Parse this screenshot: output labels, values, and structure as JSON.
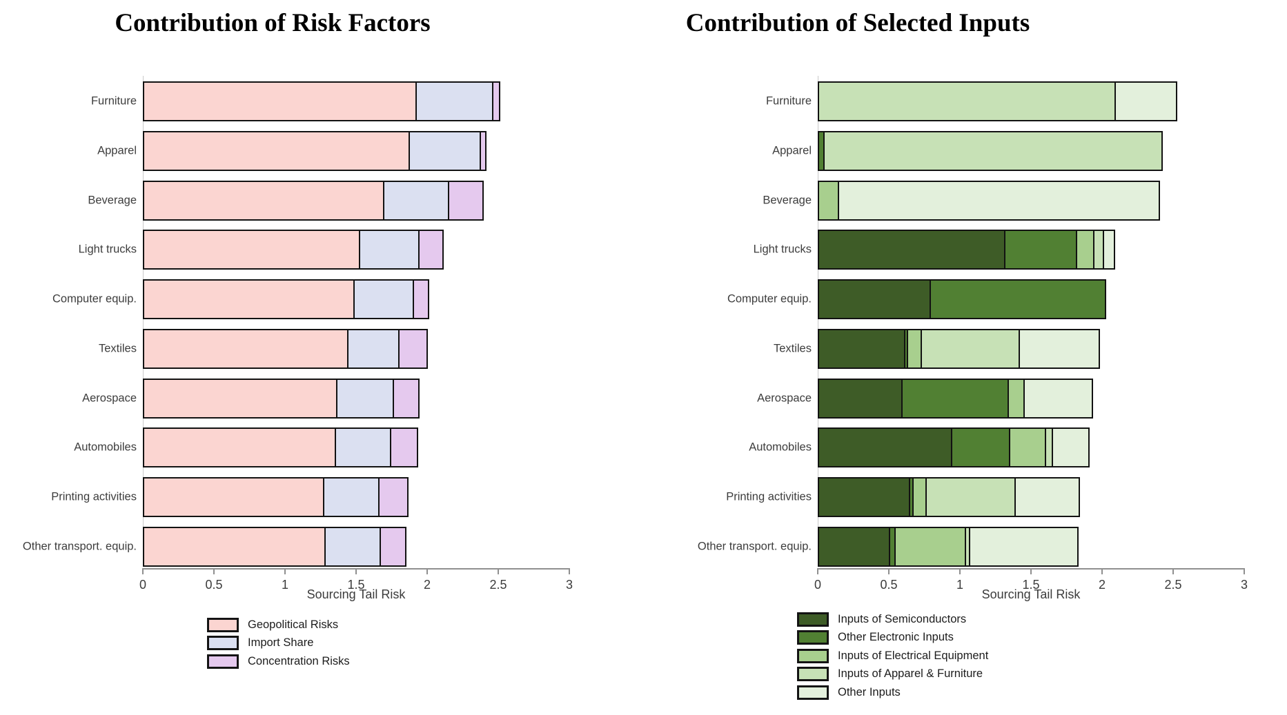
{
  "chart_data": [
    {
      "type": "bar",
      "orientation": "horizontal",
      "title": "Contribution of Risk Factors",
      "xlabel": "Sourcing Tail Risk",
      "xlim": [
        0,
        3
      ],
      "x_ticks": [
        "0",
        "0.5",
        "1",
        "1.5",
        "2",
        "2.5",
        "3"
      ],
      "grid": false,
      "legend_position": "below-left",
      "categories": [
        "Furniture",
        "Apparel",
        "Beverage",
        "Light trucks",
        "Computer equip.",
        "Textiles",
        "Aerospace",
        "Automobiles",
        "Printing activities",
        "Other transport. equip."
      ],
      "series": [
        {
          "name": "Geopolitical Risks",
          "color": "#fbd5d1",
          "values": [
            1.93,
            1.88,
            1.7,
            1.53,
            1.49,
            1.45,
            1.37,
            1.36,
            1.28,
            1.29
          ]
        },
        {
          "name": "Import Share",
          "color": "#dbe0f1",
          "values": [
            0.55,
            0.51,
            0.47,
            0.43,
            0.43,
            0.37,
            0.41,
            0.4,
            0.4,
            0.4
          ]
        },
        {
          "name": "Concentration Risks",
          "color": "#e5c9ee",
          "values": [
            0.06,
            0.05,
            0.25,
            0.18,
            0.12,
            0.21,
            0.19,
            0.2,
            0.21,
            0.19
          ]
        }
      ],
      "totals": [
        2.54,
        2.44,
        2.42,
        2.14,
        2.04,
        2.03,
        1.97,
        1.96,
        1.89,
        1.88
      ]
    },
    {
      "type": "bar",
      "orientation": "horizontal",
      "title": "Contribution of Selected Inputs",
      "xlabel": "Sourcing Tail Risk",
      "xlim": [
        0,
        3
      ],
      "x_ticks": [
        "0",
        "0.5",
        "1",
        "1.5",
        "2",
        "2.5",
        "3"
      ],
      "grid": false,
      "legend_position": "below-left",
      "categories": [
        "Furniture",
        "Apparel",
        "Beverage",
        "Light trucks",
        "Computer equip.",
        "Textiles",
        "Aerospace",
        "Automobiles",
        "Printing activities",
        "Other transport. equip."
      ],
      "series": [
        {
          "name": "Inputs of Semiconductors",
          "color": "#3e5c27",
          "values": [
            0,
            0,
            0,
            1.32,
            0.8,
            0.62,
            0.6,
            0.95,
            0.65,
            0.51
          ]
        },
        {
          "name": "Other Electronic Inputs",
          "color": "#518033",
          "values": [
            0,
            0.05,
            0,
            0.52,
            1.24,
            0.03,
            0.76,
            0.42,
            0.04,
            0.05
          ]
        },
        {
          "name": "Inputs of Electrical Equipment",
          "color": "#a8cf8e",
          "values": [
            0,
            0,
            0.15,
            0.13,
            0,
            0.11,
            0.12,
            0.26,
            0.1,
            0.51
          ]
        },
        {
          "name": "Inputs of Apparel & Furniture",
          "color": "#c7e1b6",
          "values": [
            2.1,
            2.39,
            0,
            0.08,
            0,
            0.7,
            0,
            0.06,
            0.64,
            0.04
          ]
        },
        {
          "name": "Other Inputs",
          "color": "#e3f0dc",
          "values": [
            0.44,
            0,
            2.27,
            0.09,
            0,
            0.57,
            0.49,
            0.27,
            0.46,
            0.77
          ]
        }
      ],
      "totals": [
        2.54,
        2.44,
        2.42,
        2.14,
        2.04,
        2.03,
        1.97,
        1.96,
        1.89,
        1.88
      ]
    }
  ],
  "colors": {
    "bar_border": "#121212",
    "axis_line": "#8f8f8f",
    "text": "#3b3b3b"
  }
}
